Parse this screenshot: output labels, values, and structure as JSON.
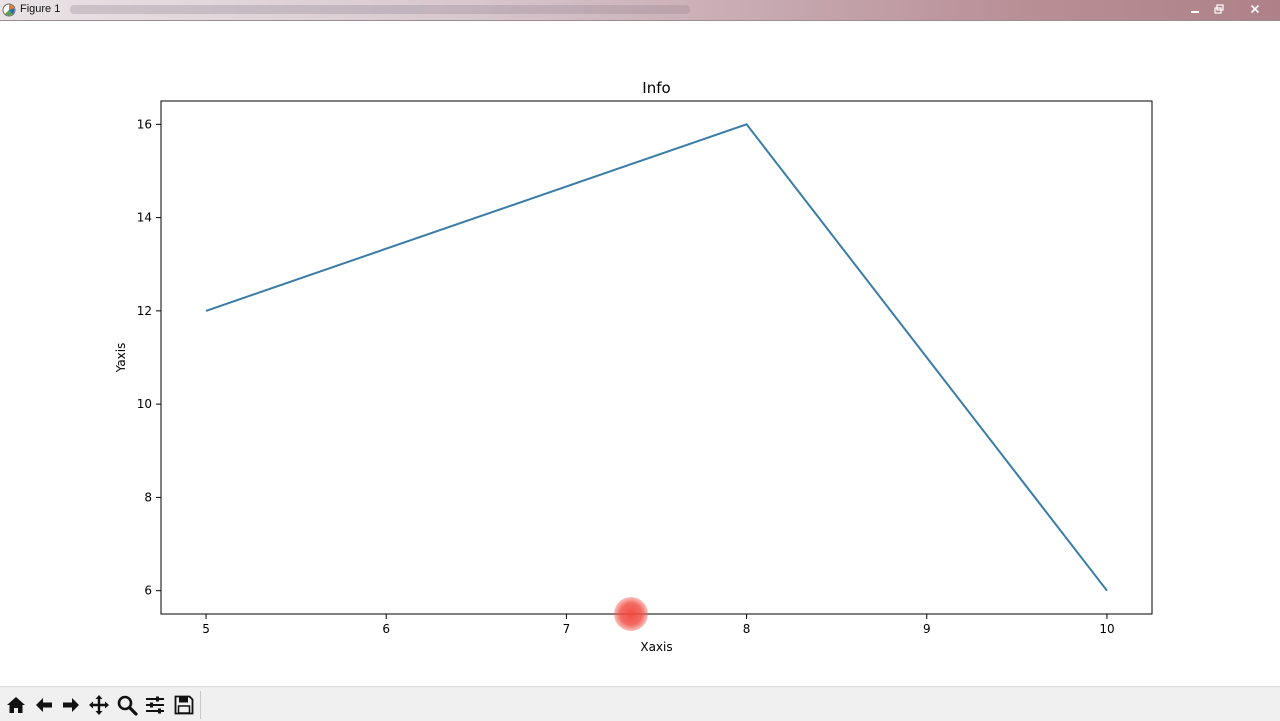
{
  "window": {
    "title": "Figure 1",
    "icons": {
      "app": "matplotlib-figure-icon",
      "minimize": "minimize-icon",
      "maximize": "restore-icon",
      "close": "close-icon"
    }
  },
  "toolbar": {
    "buttons": [
      {
        "name": "home-button",
        "icon": "home-icon"
      },
      {
        "name": "back-button",
        "icon": "arrow-left-icon"
      },
      {
        "name": "forward-button",
        "icon": "arrow-right-icon"
      },
      {
        "name": "pan-button",
        "icon": "move-icon"
      },
      {
        "name": "zoom-button",
        "icon": "magnifier-icon"
      },
      {
        "name": "configure-subplots-button",
        "icon": "sliders-icon"
      },
      {
        "name": "save-button",
        "icon": "floppy-disk-icon"
      }
    ]
  },
  "chart_data": {
    "type": "line",
    "title": "Info",
    "xlabel": "Xaxis",
    "ylabel": "Yaxis",
    "x": [
      5,
      8,
      10
    ],
    "series": [
      {
        "values": [
          12,
          16,
          6
        ],
        "color": "#3a7ca8"
      }
    ],
    "xlim": [
      4.75,
      10.25
    ],
    "ylim": [
      5.5,
      16.5
    ],
    "xticks": [
      5,
      6,
      7,
      8,
      9,
      10
    ],
    "yticks": [
      6,
      8,
      10,
      12,
      14,
      16
    ],
    "grid": false,
    "legend": false
  }
}
